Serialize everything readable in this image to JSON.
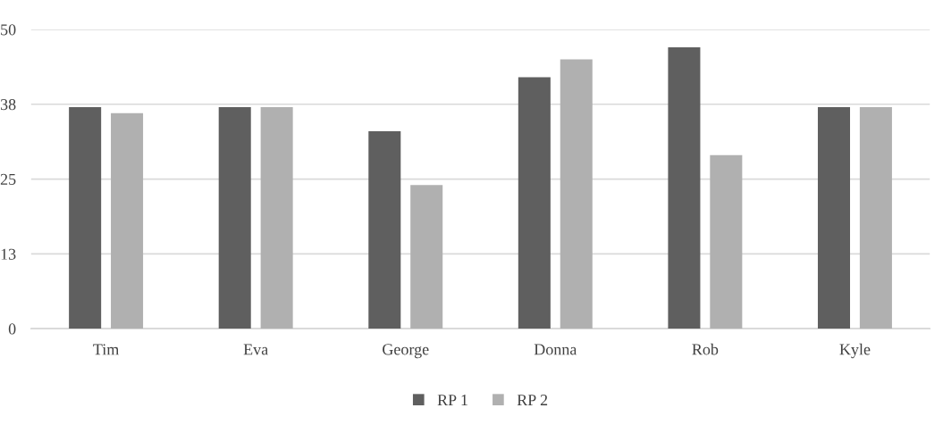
{
  "chart_data": {
    "type": "bar",
    "categories": [
      "Tim",
      "Eva",
      "George",
      "Donna",
      "Rob",
      "Kyle"
    ],
    "series": [
      {
        "name": "RP 1",
        "color": "#5f5f5f",
        "values": [
          37,
          37,
          33,
          42,
          47,
          37
        ]
      },
      {
        "name": "RP 2",
        "color": "#b0b0b0",
        "values": [
          36,
          37,
          24,
          45,
          29,
          37
        ]
      }
    ],
    "ylim": [
      0,
      50
    ],
    "yticks": [
      0,
      {
        "value": 12.5,
        "label": "13"
      },
      25,
      {
        "value": 37.5,
        "label": "38"
      },
      50
    ],
    "grid": "y",
    "legend": "bottom"
  }
}
